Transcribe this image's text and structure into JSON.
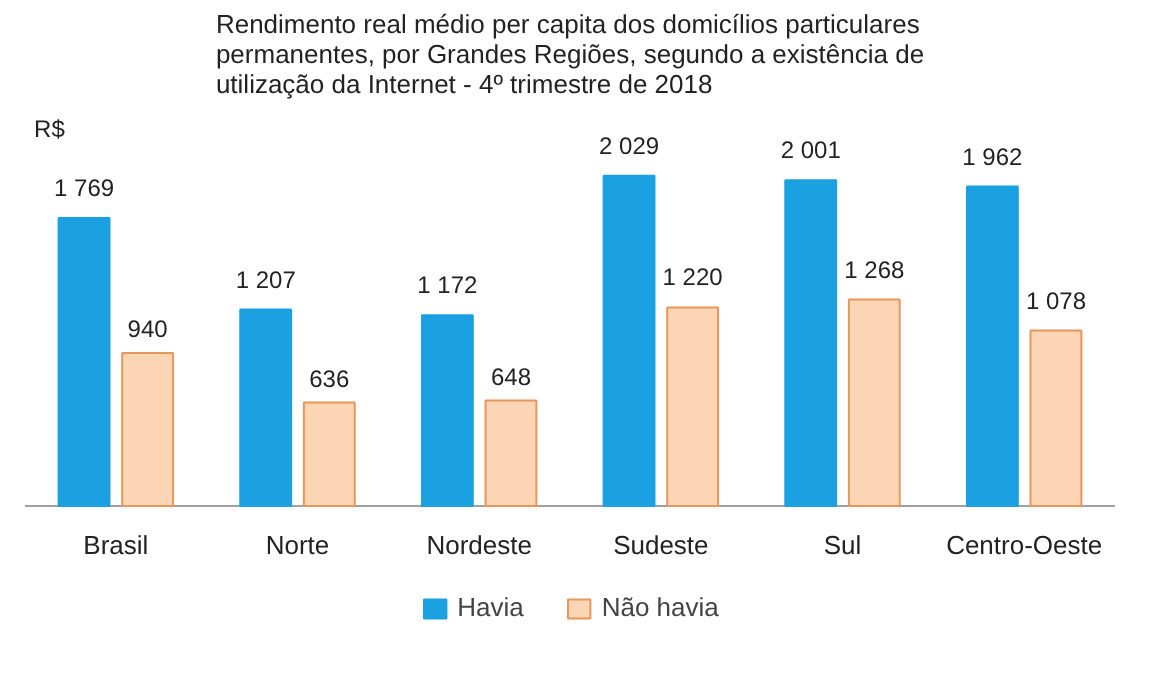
{
  "chart_data": {
    "type": "bar",
    "title": "Rendimento real médio per capita dos domicílios particulares permanentes, por Grandes Regiões, segundo a existência de utilização da Internet - 4º trimestre de 2018",
    "ylabel": "R$",
    "categories": [
      "Brasil",
      "Norte",
      "Nordeste",
      "Sudeste",
      "Sul",
      "Centro-Oeste"
    ],
    "series": [
      {
        "name": "Havia",
        "color": "#1ba1e2",
        "values": [
          1769,
          1207,
          1172,
          2029,
          2001,
          1962
        ]
      },
      {
        "name": "Não havia",
        "color": "#fcd5b5",
        "values": [
          940,
          636,
          648,
          1220,
          1268,
          1078
        ]
      }
    ],
    "data_labels": true,
    "legend": "bottom"
  }
}
